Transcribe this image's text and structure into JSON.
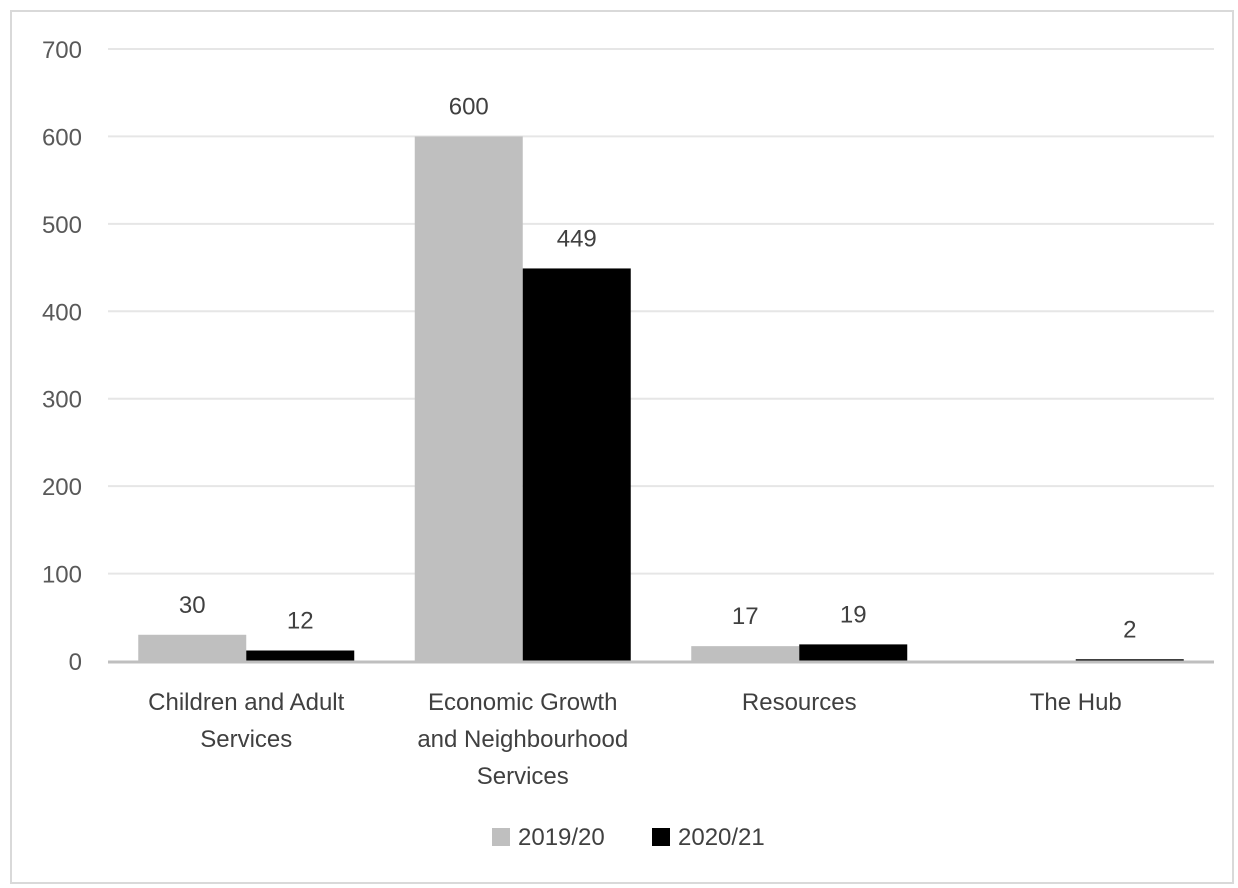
{
  "chart_data": {
    "type": "bar",
    "categories": [
      [
        "Children  and  Adult",
        "Services"
      ],
      [
        "Economic  Growth",
        "and Neighbourhood",
        "Services"
      ],
      [
        "Resources"
      ],
      [
        "The Hub"
      ]
    ],
    "series": [
      {
        "name": "2019/20",
        "values": [
          30,
          600,
          17,
          0
        ],
        "labels": [
          "30",
          "600",
          "17",
          ""
        ],
        "color": "#bfbfbf"
      },
      {
        "name": "2020/21",
        "values": [
          12,
          449,
          19,
          2
        ],
        "labels": [
          "12",
          "449",
          "19",
          "2"
        ],
        "color": "#000000"
      }
    ],
    "ylim": [
      0,
      700
    ],
    "yticks": [
      0,
      100,
      200,
      300,
      400,
      500,
      600,
      700
    ],
    "grid": true,
    "legend": "bottom",
    "gridline_color": "#e6e6e6",
    "axis_color": "#bfbfbf"
  }
}
